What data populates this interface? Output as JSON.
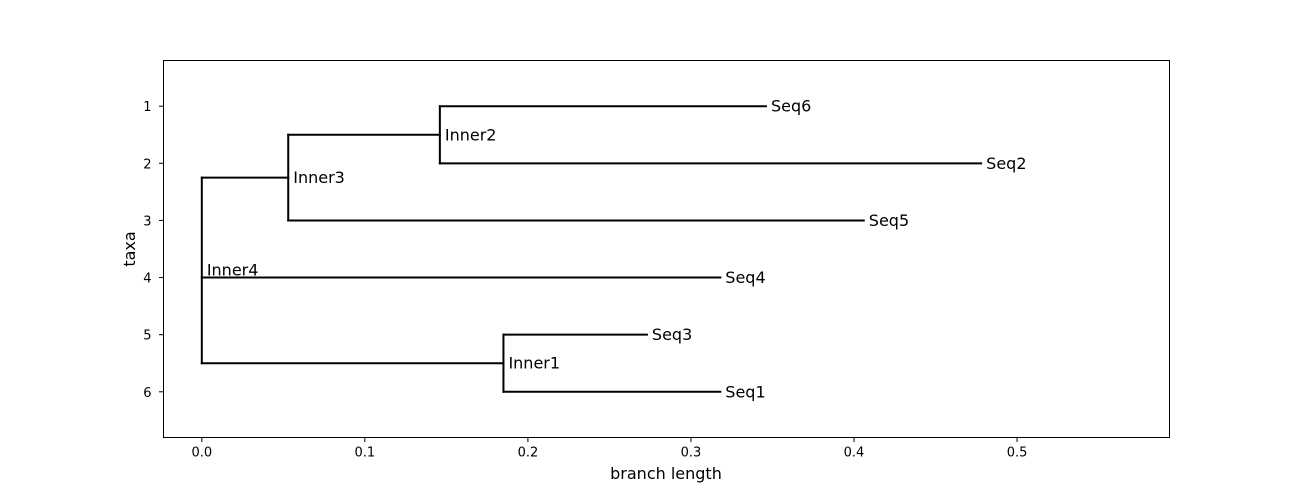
{
  "chart_data": {
    "type": "phylogenetic-tree",
    "xlabel": "branch length",
    "ylabel": "taxa",
    "xlim": [
      -0.0235,
      0.5935
    ],
    "ylim": [
      6.8,
      0.2
    ],
    "x_ticks": [
      {
        "value": 0.0,
        "label": "0.0"
      },
      {
        "value": 0.1,
        "label": "0.1"
      },
      {
        "value": 0.2,
        "label": "0.2"
      },
      {
        "value": 0.3,
        "label": "0.3"
      },
      {
        "value": 0.4,
        "label": "0.4"
      },
      {
        "value": 0.5,
        "label": "0.5"
      }
    ],
    "y_ticks": [
      {
        "value": 1,
        "label": "1"
      },
      {
        "value": 2,
        "label": "2"
      },
      {
        "value": 3,
        "label": "3"
      },
      {
        "value": 4,
        "label": "4"
      },
      {
        "value": 5,
        "label": "5"
      },
      {
        "value": 6,
        "label": "6"
      }
    ],
    "nodes": [
      {
        "id": "Inner4",
        "label": "Inner4",
        "x": 0.0,
        "y": 4.0,
        "span": [
          2.25,
          5.5
        ]
      },
      {
        "id": "Inner3",
        "label": "Inner3",
        "x": 0.053,
        "y": 2.25,
        "parent": "Inner4",
        "span": [
          1.5,
          3.0
        ]
      },
      {
        "id": "Inner2",
        "label": "Inner2",
        "x": 0.146,
        "y": 1.5,
        "parent": "Inner3",
        "span": [
          1.0,
          2.0
        ]
      },
      {
        "id": "Inner1",
        "label": "Inner1",
        "x": 0.185,
        "y": 5.5,
        "parent": "Inner4",
        "span": [
          5.0,
          6.0
        ]
      },
      {
        "id": "Seq6",
        "label": "Seq6",
        "x": 0.346,
        "y": 1.0,
        "parent": "Inner2"
      },
      {
        "id": "Seq2",
        "label": "Seq2",
        "x": 0.478,
        "y": 2.0,
        "parent": "Inner2"
      },
      {
        "id": "Seq5",
        "label": "Seq5",
        "x": 0.406,
        "y": 3.0,
        "parent": "Inner3"
      },
      {
        "id": "Seq4",
        "label": "Seq4",
        "x": 0.318,
        "y": 4.0,
        "parent": "Inner4"
      },
      {
        "id": "Seq3",
        "label": "Seq3",
        "x": 0.273,
        "y": 5.0,
        "parent": "Inner1"
      },
      {
        "id": "Seq1",
        "label": "Seq1",
        "x": 0.318,
        "y": 6.0,
        "parent": "Inner1"
      }
    ]
  }
}
